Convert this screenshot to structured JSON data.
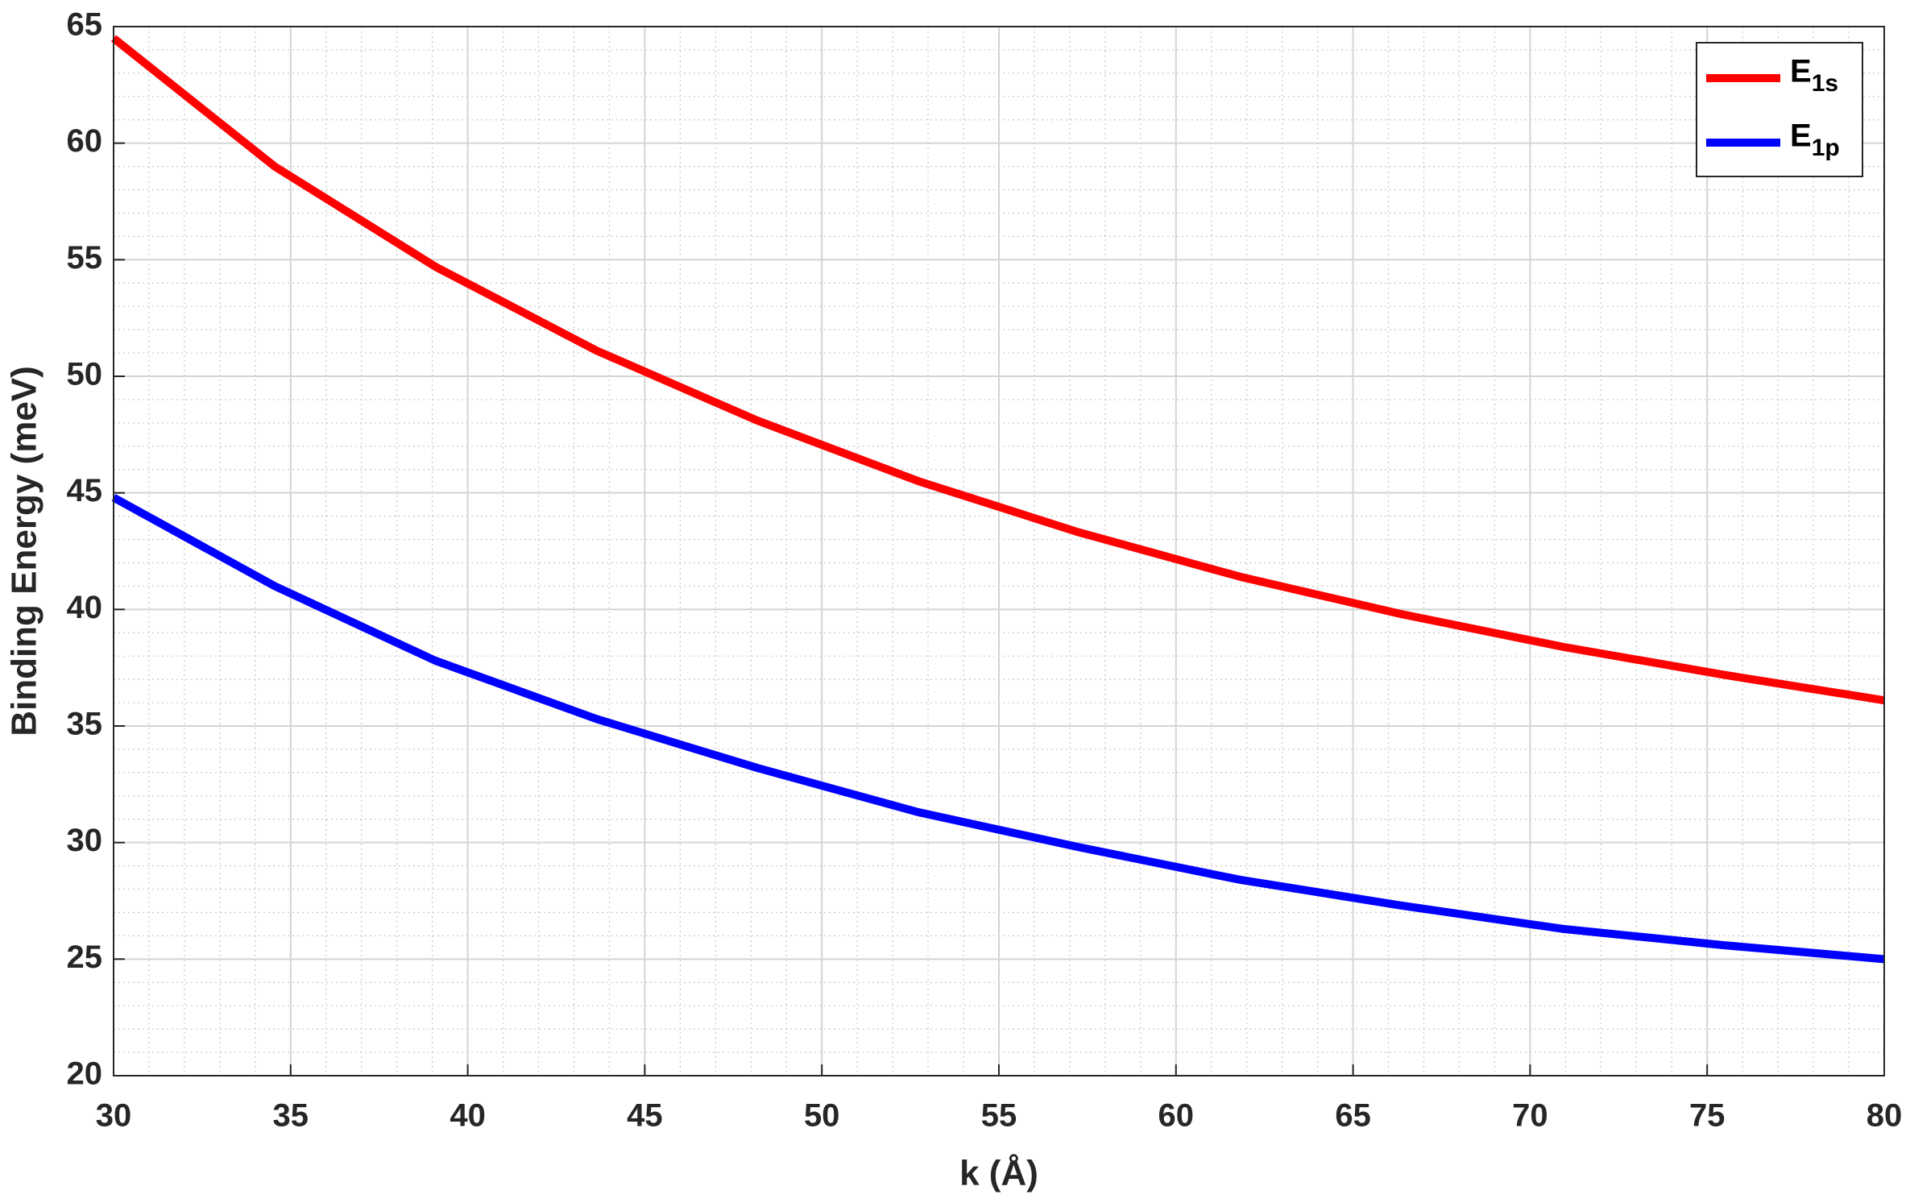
{
  "chart_data": {
    "type": "line",
    "x_label": "k (Å)",
    "y_label": "Binding Energy (meV)",
    "x": [
      30,
      34.55,
      39.09,
      43.64,
      48.18,
      52.73,
      57.27,
      61.82,
      66.36,
      70.91,
      75.45,
      80
    ],
    "series": [
      {
        "name": "E1s",
        "color": "#ff0000",
        "values": [
          64.5,
          59.0,
          54.7,
          51.1,
          48.1,
          45.5,
          43.3,
          41.4,
          39.8,
          38.4,
          37.2,
          36.1
        ]
      },
      {
        "name": "E1p",
        "color": "#0000ff",
        "values": [
          44.8,
          41.0,
          37.8,
          35.3,
          33.2,
          31.3,
          29.8,
          28.4,
          27.3,
          26.3,
          25.6,
          25.0
        ]
      }
    ],
    "xlim": [
      30,
      80
    ],
    "xticks": [
      30,
      35,
      40,
      45,
      50,
      55,
      60,
      65,
      70,
      75,
      80
    ],
    "ylim": [
      20,
      65
    ],
    "yticks": [
      20,
      25,
      30,
      35,
      40,
      45,
      50,
      55,
      60,
      65
    ],
    "grid": true,
    "minor_grid": true,
    "legend": "upper right"
  }
}
